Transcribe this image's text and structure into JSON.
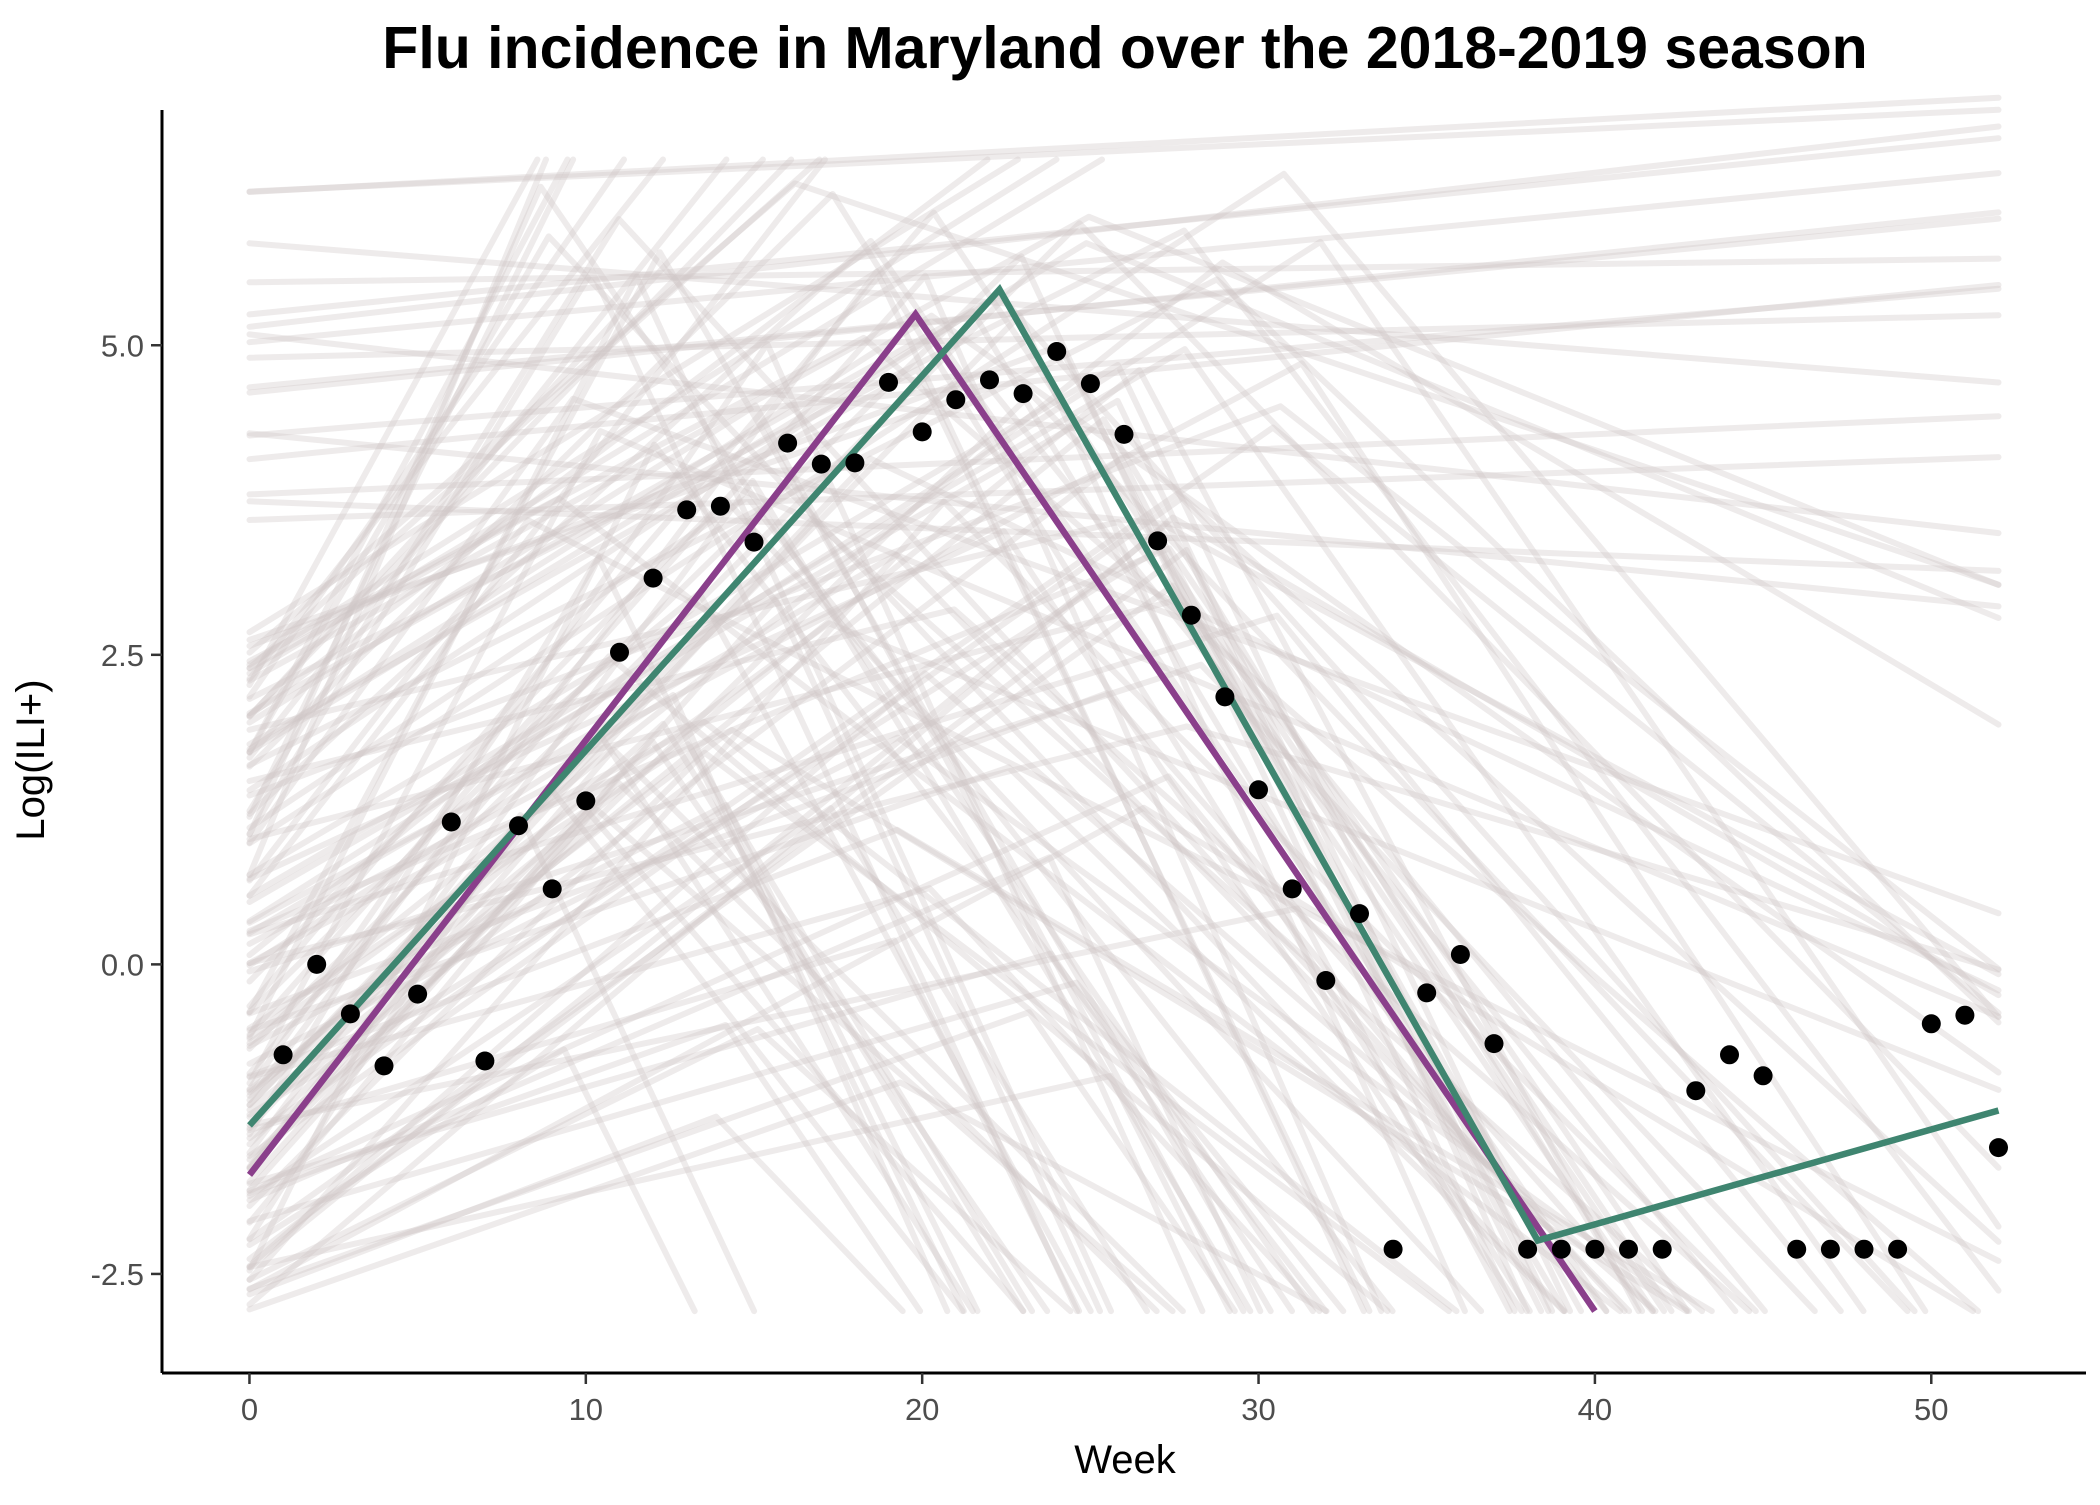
{
  "chart_data": {
    "type": "scatter",
    "title": "Flu incidence in Maryland over the 2018-2019 season",
    "xlabel": "Week",
    "ylabel": "Log(ILI+)",
    "xlim": [
      -2.6,
      54.6
    ],
    "ylim": [
      -3.3,
      6.9
    ],
    "x_ticks": [
      0,
      10,
      20,
      30,
      40,
      50
    ],
    "x_tick_labels": [
      "0",
      "10",
      "20",
      "30",
      "40",
      "50"
    ],
    "y_ticks": [
      -2.5,
      0,
      2.5,
      5
    ],
    "y_tick_labels": [
      "-2.5",
      "0.0",
      "2.5",
      "5.0"
    ],
    "grid": false,
    "legend": "none",
    "colors": {
      "points": "#000000",
      "purple_line": "#8a3f8b",
      "green_line": "#3f8570",
      "sample_lines": "#cfc6c6"
    },
    "observed_points": [
      {
        "x": 1,
        "y": -0.73
      },
      {
        "x": 2,
        "y": 0.0
      },
      {
        "x": 3,
        "y": -0.4
      },
      {
        "x": 4,
        "y": -0.82
      },
      {
        "x": 5,
        "y": -0.24
      },
      {
        "x": 6,
        "y": 1.15
      },
      {
        "x": 7,
        "y": -0.78
      },
      {
        "x": 8,
        "y": 1.12
      },
      {
        "x": 9,
        "y": 0.61
      },
      {
        "x": 10,
        "y": 1.32
      },
      {
        "x": 11,
        "y": 2.52
      },
      {
        "x": 12,
        "y": 3.12
      },
      {
        "x": 13,
        "y": 3.67
      },
      {
        "x": 14,
        "y": 3.7
      },
      {
        "x": 15,
        "y": 3.41
      },
      {
        "x": 16,
        "y": 4.21
      },
      {
        "x": 17,
        "y": 4.04
      },
      {
        "x": 18,
        "y": 4.05
      },
      {
        "x": 19,
        "y": 4.7
      },
      {
        "x": 20,
        "y": 4.3
      },
      {
        "x": 21,
        "y": 4.56
      },
      {
        "x": 22,
        "y": 4.72
      },
      {
        "x": 23,
        "y": 4.61
      },
      {
        "x": 24,
        "y": 4.95
      },
      {
        "x": 25,
        "y": 4.69
      },
      {
        "x": 26,
        "y": 4.28
      },
      {
        "x": 27,
        "y": 3.42
      },
      {
        "x": 28,
        "y": 2.82
      },
      {
        "x": 29,
        "y": 2.16
      },
      {
        "x": 30,
        "y": 1.41
      },
      {
        "x": 31,
        "y": 0.61
      },
      {
        "x": 32,
        "y": -0.13
      },
      {
        "x": 33,
        "y": 0.41
      },
      {
        "x": 34,
        "y": -2.3
      },
      {
        "x": 35,
        "y": -0.23
      },
      {
        "x": 36,
        "y": 0.08
      },
      {
        "x": 37,
        "y": -0.64
      },
      {
        "x": 38,
        "y": -2.3
      },
      {
        "x": 39,
        "y": -2.3
      },
      {
        "x": 40,
        "y": -2.3
      },
      {
        "x": 41,
        "y": -2.3
      },
      {
        "x": 42,
        "y": -2.3
      },
      {
        "x": 43,
        "y": -1.02
      },
      {
        "x": 44,
        "y": -0.73
      },
      {
        "x": 45,
        "y": -0.9
      },
      {
        "x": 46,
        "y": -2.3
      },
      {
        "x": 47,
        "y": -2.3
      },
      {
        "x": 48,
        "y": -2.3
      },
      {
        "x": 49,
        "y": -2.3
      },
      {
        "x": 50,
        "y": -0.48
      },
      {
        "x": 51,
        "y": -0.41
      },
      {
        "x": 52,
        "y": -1.48
      }
    ],
    "fitted_lines": [
      {
        "color": "purple",
        "points": [
          [
            0,
            -1.7
          ],
          [
            19.8,
            5.25
          ],
          [
            40,
            -2.8
          ]
        ]
      },
      {
        "color": "green",
        "points": [
          [
            0,
            -1.3
          ],
          [
            22.3,
            5.45
          ],
          [
            38.3,
            -2.23
          ],
          [
            52,
            -1.18
          ]
        ]
      }
    ]
  }
}
